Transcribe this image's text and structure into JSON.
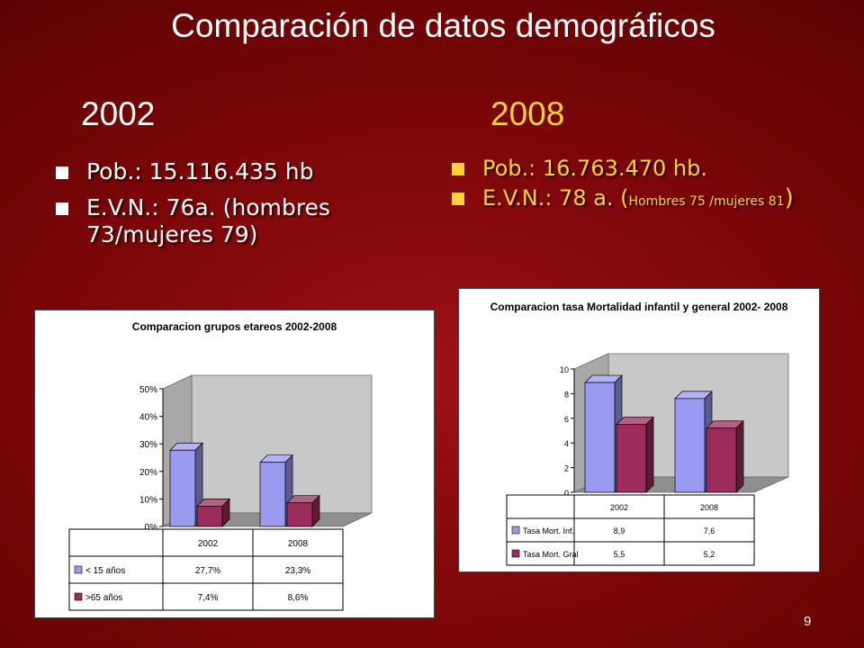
{
  "slide": {
    "title": "Comparación de datos demográficos",
    "year_left": "2002",
    "year_right": "2008",
    "page_number": "9"
  },
  "left_bullets": [
    "Pob.: 15.116.435 hb",
    "E.V.N.:  76a. (hombres 73/mujeres 79)"
  ],
  "right_bullets": {
    "pop": "Pob.: 16.763.470 hb.",
    "evn_main": "E.V.N.:  78 a. (",
    "evn_small": "Hombres 75 /mujeres 81",
    "evn_close": ")"
  },
  "colors": {
    "accent_yellow": "#ffd23c",
    "background_red": "#7a0608",
    "series_blue": "#9a9af0",
    "series_maroon": "#9c2c5c"
  },
  "chart_data": [
    {
      "type": "bar",
      "title": "Comparacion grupos etareos 2002-2008",
      "categories": [
        "2002",
        "2008"
      ],
      "series": [
        {
          "name": "< 15 años",
          "values": [
            27.7,
            23.3
          ],
          "labels": [
            "27,7%",
            "23,3%"
          ]
        },
        {
          "name": ">65 años",
          "values": [
            7.4,
            8.6
          ],
          "labels": [
            "7,4%",
            "8,6%"
          ]
        }
      ],
      "ylim": [
        0,
        50
      ],
      "yticks": [
        "0%",
        "10%",
        "20%",
        "30%",
        "40%",
        "50%"
      ],
      "grid": false,
      "legend": "data-table"
    },
    {
      "type": "bar",
      "title": "Comparacion tasa Mortalidad infantil y general 2002- 2008",
      "categories": [
        "2002",
        "2008"
      ],
      "series": [
        {
          "name": "Tasa Mort. Inf.",
          "values": [
            8.9,
            7.6
          ],
          "labels": [
            "8,9",
            "7,6"
          ]
        },
        {
          "name": "Tasa Mort. Gral",
          "values": [
            5.5,
            5.2
          ],
          "labels": [
            "5,5",
            "5,2"
          ]
        }
      ],
      "ylim": [
        0,
        10
      ],
      "yticks": [
        "0",
        "2",
        "4",
        "6",
        "8",
        "10"
      ],
      "grid": false,
      "legend": "data-table"
    }
  ]
}
